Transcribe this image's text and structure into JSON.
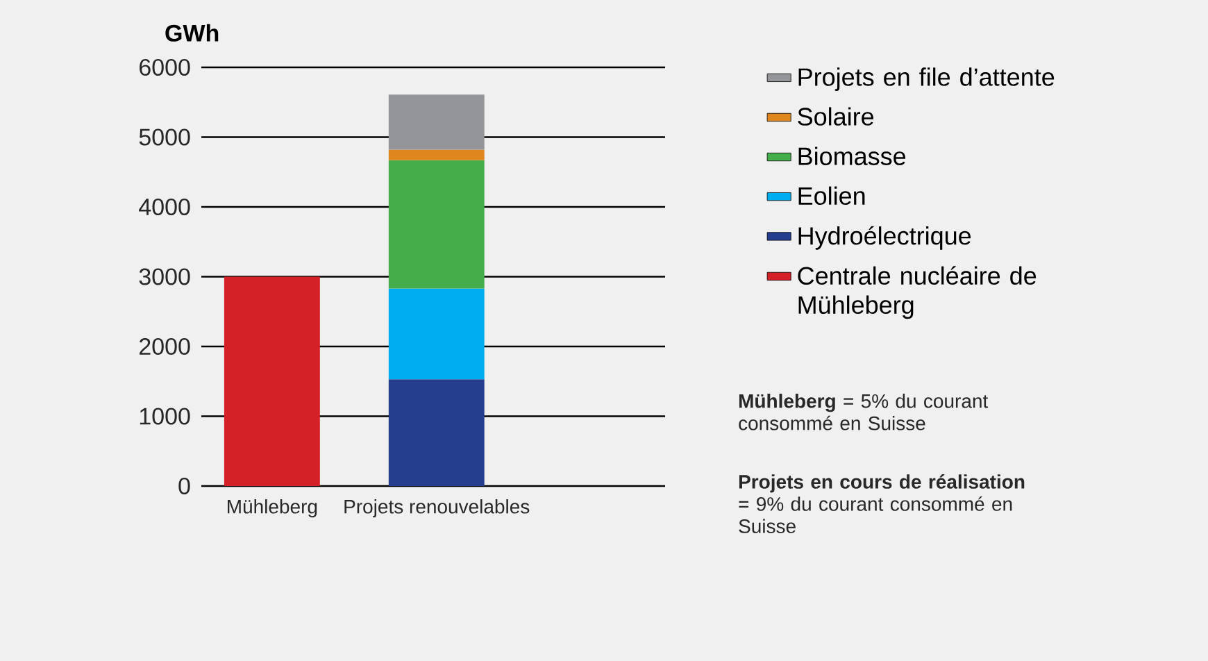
{
  "chart_data": {
    "type": "bar",
    "stacked": true,
    "ylabel": "GWh",
    "categories": [
      "Mühleberg",
      "Projets renouvelables"
    ],
    "series": [
      {
        "name": "Centrale nucléaire de Mühleberg",
        "color": "#d42027",
        "values": [
          3000,
          null
        ]
      },
      {
        "name": "Hydroélectrique",
        "color": "#253f8e",
        "values": [
          null,
          1530
        ]
      },
      {
        "name": "Eolien",
        "color": "#00aeef",
        "values": [
          null,
          1300
        ]
      },
      {
        "name": "Biomasse",
        "color": "#45ad4a",
        "values": [
          null,
          1840
        ]
      },
      {
        "name": "Solaire",
        "color": "#e0861f",
        "values": [
          null,
          150
        ]
      },
      {
        "name": "Projets en file d’attente",
        "color": "#939598",
        "values": [
          null,
          790
        ]
      }
    ],
    "ylim": [
      0,
      6000
    ],
    "yticks": [
      0,
      1000,
      2000,
      3000,
      4000,
      5000,
      6000
    ],
    "grid": "y",
    "legend": "right",
    "annotations": [
      "**Mühleberg** = 5% du courant consommé en Suisse",
      "**Projets en cours de réalisation** = 9% du courant consommé en Suisse"
    ]
  }
}
